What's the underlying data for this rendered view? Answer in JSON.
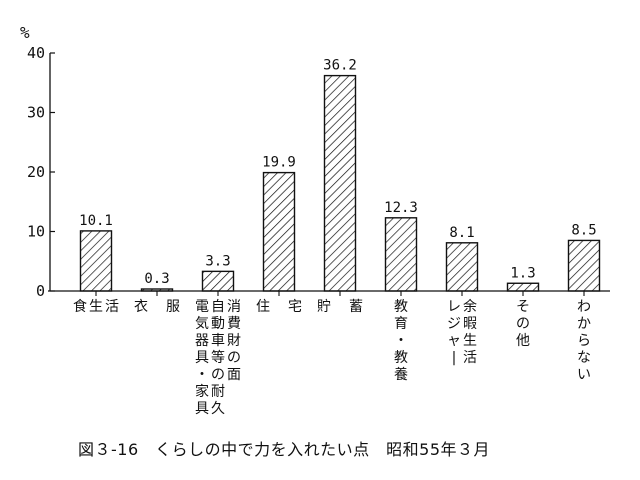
{
  "caption": "図３-16　くらしの中で力を入れたい点　昭和55年３月",
  "chart_data": {
    "type": "bar",
    "ylabel": "%",
    "ylim": [
      0,
      40
    ],
    "yticks": [
      0,
      10,
      20,
      30,
      40
    ],
    "categories": [
      [
        "食",
        "生",
        "活"
      ],
      [
        "衣",
        "",
        "服"
      ],
      [
        "電気器具・家具",
        "自動車等の耐久",
        "消費財の面"
      ],
      [
        "住",
        "",
        "宅"
      ],
      [
        "貯",
        "",
        "蓄"
      ],
      [
        "教育・教養"
      ],
      [
        "レジャー",
        "余暇生活"
      ],
      [
        "その他"
      ],
      [
        "わからない"
      ]
    ],
    "values": [
      10.1,
      0.3,
      3.3,
      19.9,
      36.2,
      12.3,
      8.1,
      1.3,
      8.5
    ],
    "value_labels": [
      "10.1",
      "0.3",
      "3.3",
      "19.9",
      "36.2",
      "12.3",
      "8.1",
      "1.3",
      "8.5"
    ],
    "bar_fill": "diagonal-hatch",
    "grid": false
  }
}
